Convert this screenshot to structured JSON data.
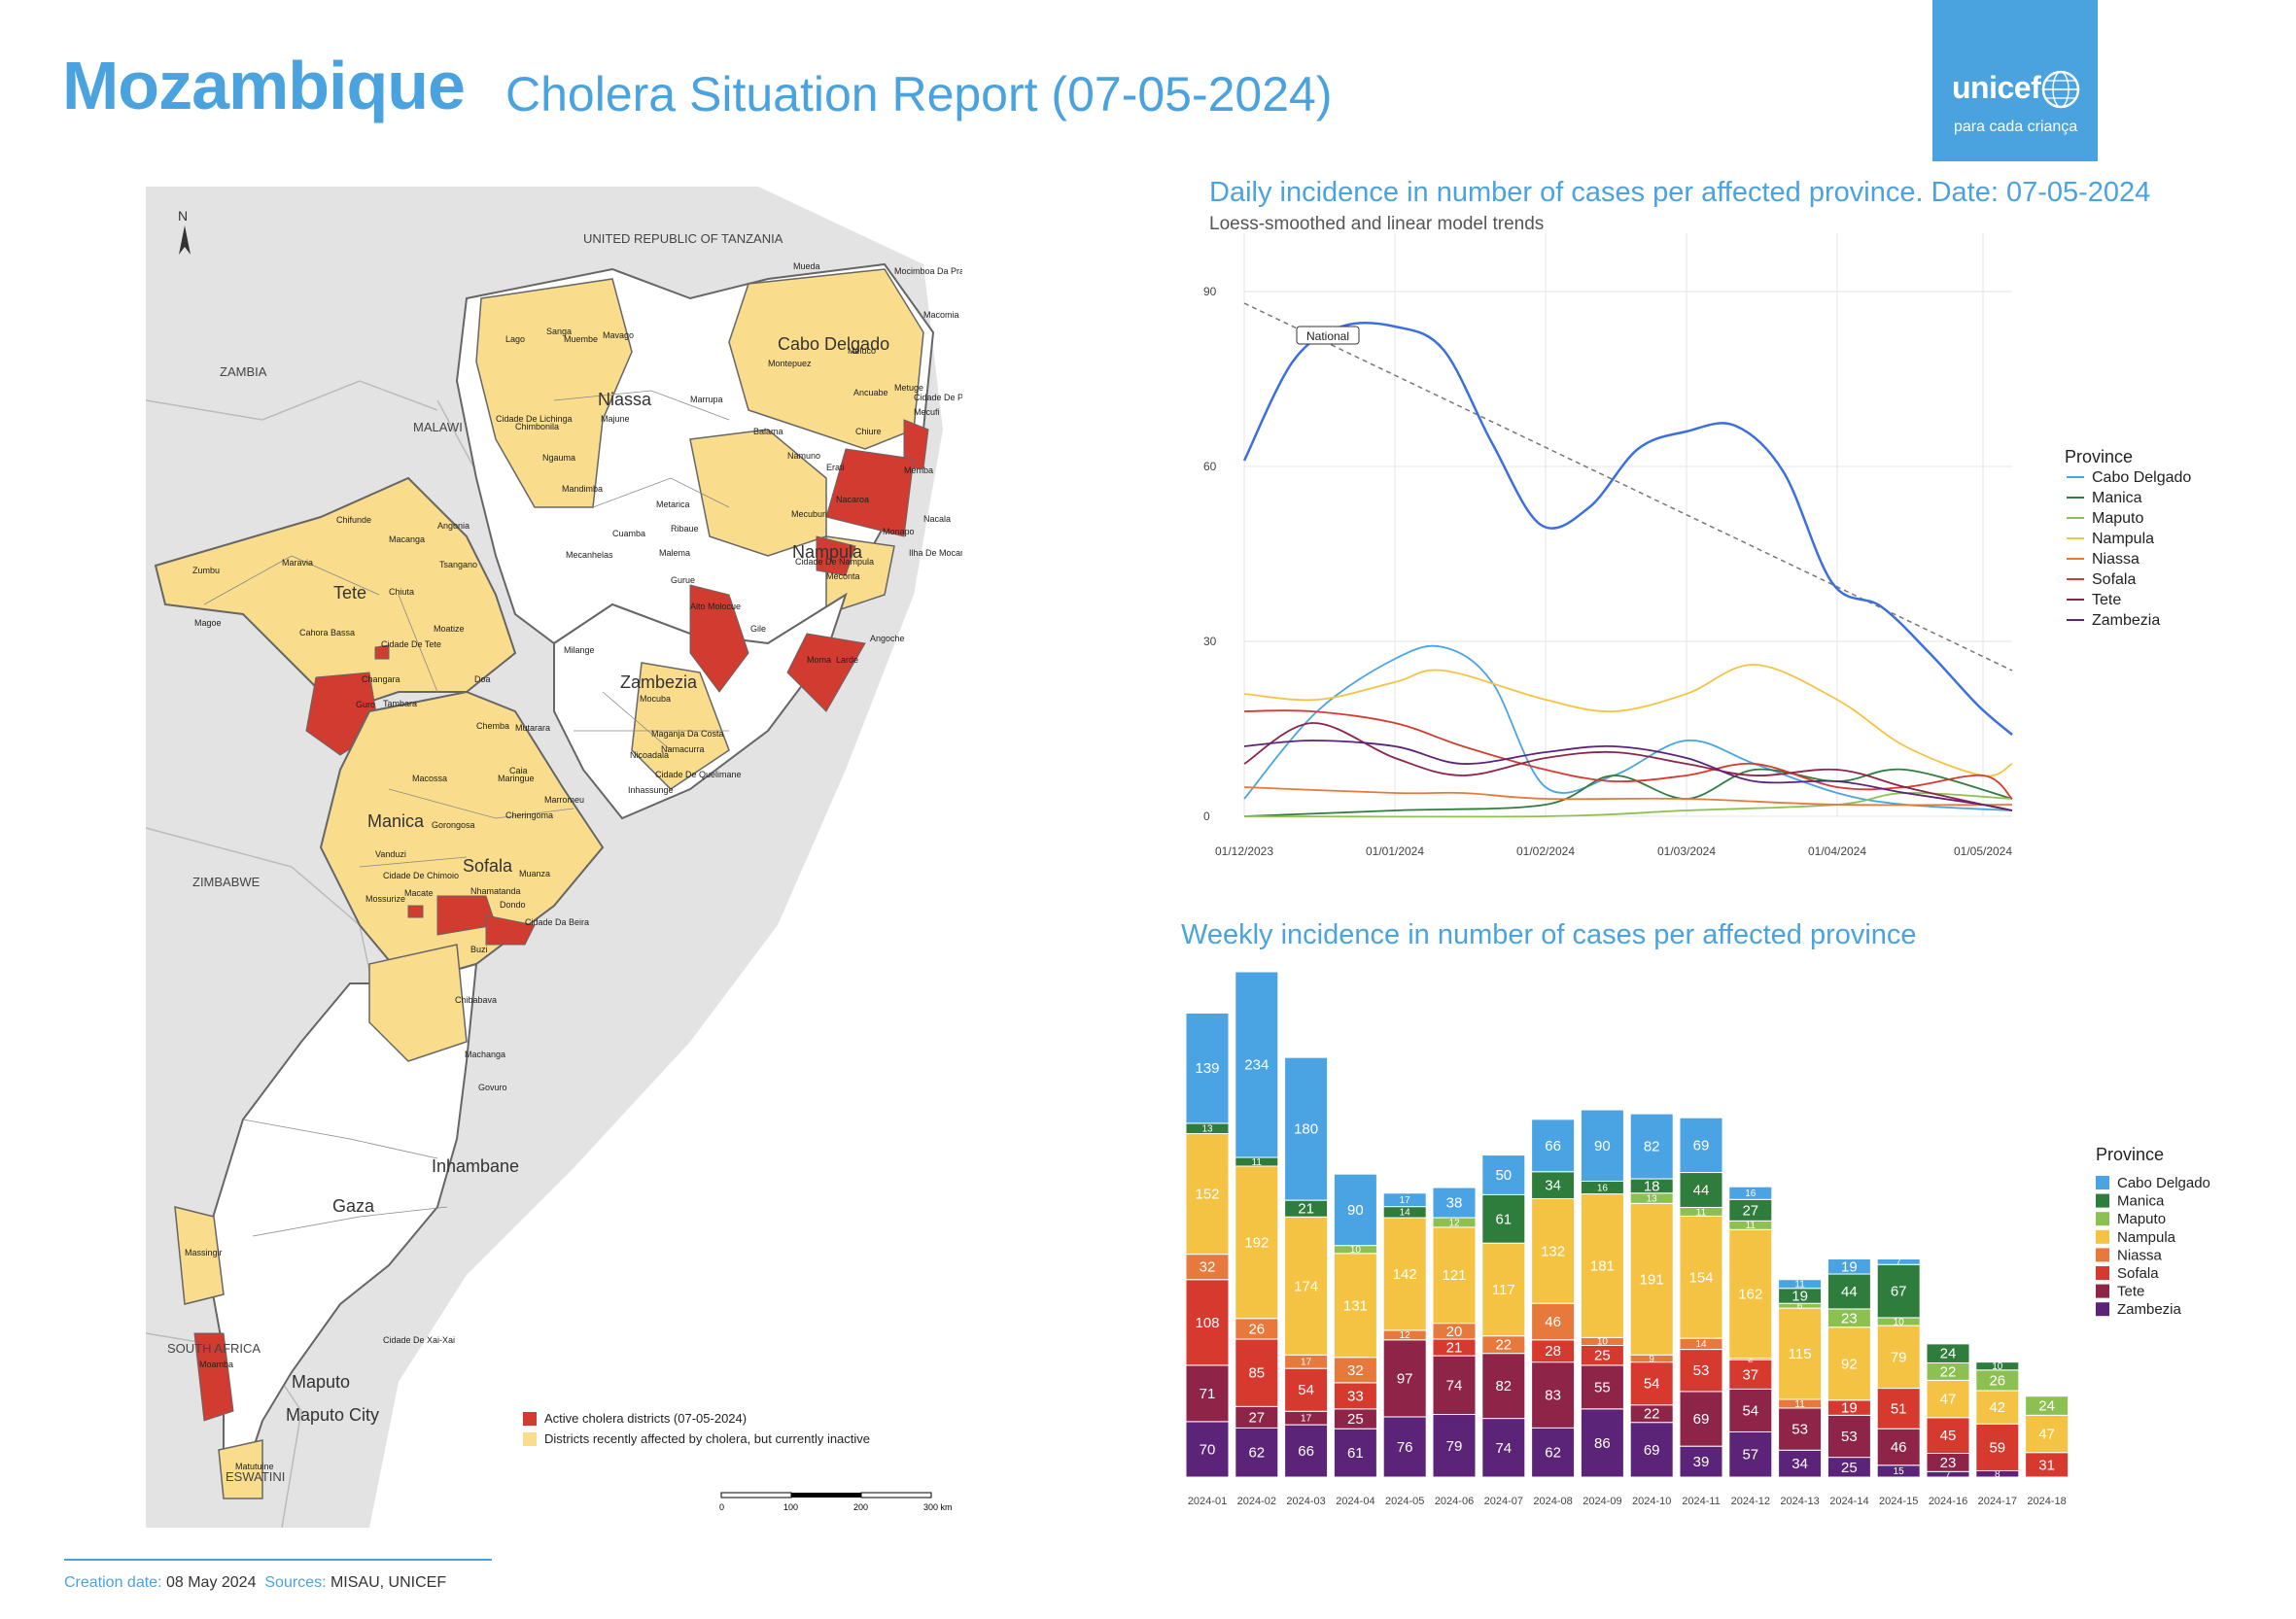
{
  "header": {
    "title": "Mozambique",
    "subtitle": "Cholera Situation Report (07-05-2024)",
    "logo_word": "unicef",
    "logo_tagline": "para cada criança"
  },
  "colors": {
    "unicef_blue": "#4aa3df",
    "active": "#d23b2f",
    "inactive": "#f9dc8c",
    "cabo_delgado": "#4aa3e3",
    "manica": "#2f7d3d",
    "maputo": "#8cc152",
    "nampula": "#f4c343",
    "niassa": "#e8793d",
    "sofala": "#d63a2f",
    "tete": "#8e2448",
    "zambezia": "#5c2478",
    "national": "#3b6fe0"
  },
  "map": {
    "north_label": "N",
    "country_labels": [
      "UNITED REPUBLIC OF TANZANIA",
      "ZAMBIA",
      "MALAWI",
      "ZIMBABWE",
      "SOUTH AFRICA",
      "ESWATINI"
    ],
    "province_labels": [
      "Cabo Delgado",
      "Niassa",
      "Nampula",
      "Tete",
      "Zambezia",
      "Manica",
      "Sofala",
      "Inhambane",
      "Gaza",
      "Maputo",
      "Maputo City"
    ],
    "district_labels": [
      "Mueda",
      "Mocimboa Da Praia",
      "Macomia",
      "Meluco",
      "Montepuez",
      "Ancuabe",
      "Metuge",
      "Cidade De Pemba",
      "Mecufi",
      "Chiure",
      "Balama",
      "Namuno",
      "Erati",
      "Memba",
      "Nacaroa",
      "Monapo",
      "Ilha De Mocambique",
      "Nacala",
      "Mecuburi",
      "Cidade De Nampula",
      "Meconta",
      "Angoche",
      "Larde",
      "Moma",
      "Gile",
      "Alto Molocue",
      "Gurue",
      "Malema",
      "Ribaue",
      "Cuamba",
      "Metarica",
      "Marrupa",
      "Mavago",
      "Sanga",
      "Lago",
      "Muembe",
      "Majune",
      "Cidade De Lichinga",
      "Chimbonila",
      "Ngauma",
      "Mandimba",
      "Mecanhelas",
      "Milange",
      "Mocuba",
      "Maganja Da Costa",
      "Namacurra",
      "Nicoadala",
      "Cidade De Quelimane",
      "Inhassunge",
      "Mutarara",
      "Chemba",
      "Caia",
      "Maringue",
      "Marromeu",
      "Cheringoma",
      "Muanza",
      "Dondo",
      "Cidade Da Beira",
      "Nhamatanda",
      "Buzi",
      "Chibabava",
      "Machanga",
      "Govuro",
      "Gorongosa",
      "Macossa",
      "Tambara",
      "Guro",
      "Changara",
      "Cidade De Tete",
      "Moatize",
      "Chiuta",
      "Tsangano",
      "Angonia",
      "Macanga",
      "Chifunde",
      "Maravia",
      "Zumbu",
      "Magoe",
      "Cahora Bassa",
      "Doa",
      "Mossurize",
      "Vanduzi",
      "Cidade De Chimoio",
      "Macate",
      "Massingir",
      "Moamba",
      "Matutuine",
      "Cidade De Xai-Xai"
    ],
    "legend": [
      {
        "label": "Active cholera districts (07-05-2024)",
        "color": "#d23b2f"
      },
      {
        "label": "Districts recently affected by cholera, but currently inactive",
        "color": "#f9dc8c"
      }
    ],
    "scale_ticks": [
      "0",
      "100",
      "200",
      "300 km"
    ]
  },
  "footer": {
    "creation_label": "Creation date:",
    "creation_value": "08 May 2024",
    "sources_label": "Sources:",
    "sources_value": "MISAU, UNICEF"
  },
  "chart_data": [
    {
      "type": "line",
      "title": "Daily incidence in number of cases per affected province. Date: 07-05-2024",
      "subtitle": "Loess-smoothed and linear model trends",
      "x_ticks": [
        "01/12/2023",
        "01/01/2024",
        "01/02/2024",
        "01/03/2024",
        "01/04/2024",
        "01/05/2024"
      ],
      "ylim": [
        0,
        100
      ],
      "y_ticks": [
        0,
        30,
        60,
        90
      ],
      "legend_title": "Province",
      "legend_position": "right",
      "annotation": "National",
      "series": [
        {
          "name": "National",
          "color": "#3b6fe0",
          "x": [
            "01/12/2023",
            "11/12/2023",
            "21/12/2023",
            "01/01/2024",
            "11/01/2024",
            "21/01/2024",
            "31/01/2024",
            "10/02/2024",
            "20/02/2024",
            "01/03/2024",
            "11/03/2024",
            "21/03/2024",
            "31/03/2024",
            "10/04/2024",
            "20/04/2024",
            "30/04/2024",
            "07/05/2024"
          ],
          "values": [
            61,
            78,
            84,
            84,
            80,
            64,
            50,
            53,
            63,
            66,
            67,
            59,
            40,
            36,
            28,
            19,
            14
          ]
        },
        {
          "name": "Cabo Delgado",
          "color": "#4aa3e3",
          "x": [
            "01/12/2023",
            "16/12/2023",
            "01/01/2024",
            "11/01/2024",
            "21/01/2024",
            "01/02/2024",
            "15/02/2024",
            "01/03/2024",
            "15/03/2024",
            "01/04/2024",
            "15/04/2024",
            "07/05/2024"
          ],
          "values": [
            3,
            18,
            27,
            29,
            23,
            5,
            7,
            13,
            9,
            4,
            2,
            1
          ]
        },
        {
          "name": "Manica",
          "color": "#2f7d3d",
          "x": [
            "01/12/2023",
            "01/01/2024",
            "01/02/2024",
            "15/02/2024",
            "01/03/2024",
            "15/03/2024",
            "01/04/2024",
            "15/04/2024",
            "07/05/2024"
          ],
          "values": [
            0,
            1,
            2,
            7,
            3,
            8,
            6,
            8,
            3
          ]
        },
        {
          "name": "Maputo",
          "color": "#8cc152",
          "x": [
            "01/12/2023",
            "01/02/2024",
            "01/03/2024",
            "01/04/2024",
            "15/04/2024",
            "07/05/2024"
          ],
          "values": [
            0,
            0,
            1,
            2,
            4,
            3
          ]
        },
        {
          "name": "Nampula",
          "color": "#f4c343",
          "x": [
            "01/12/2023",
            "16/12/2023",
            "01/01/2024",
            "11/01/2024",
            "01/02/2024",
            "15/02/2024",
            "01/03/2024",
            "15/03/2024",
            "01/04/2024",
            "15/04/2024",
            "01/05/2024",
            "07/05/2024"
          ],
          "values": [
            21,
            20,
            23,
            25,
            20,
            18,
            21,
            26,
            20,
            12,
            7,
            9
          ]
        },
        {
          "name": "Niassa",
          "color": "#e8793d",
          "x": [
            "01/12/2023",
            "01/01/2024",
            "15/01/2024",
            "01/02/2024",
            "01/03/2024",
            "01/04/2024",
            "07/05/2024"
          ],
          "values": [
            5,
            4,
            4,
            3,
            3,
            2,
            2
          ]
        },
        {
          "name": "Sofala",
          "color": "#d63a2f",
          "x": [
            "01/12/2023",
            "15/12/2023",
            "01/01/2024",
            "15/01/2024",
            "01/02/2024",
            "15/02/2024",
            "01/03/2024",
            "15/03/2024",
            "01/04/2024",
            "15/04/2024",
            "01/05/2024",
            "07/05/2024"
          ],
          "values": [
            18,
            18,
            16,
            12,
            8,
            6,
            7,
            9,
            5,
            5,
            7,
            3
          ]
        },
        {
          "name": "Tete",
          "color": "#8e2448",
          "x": [
            "01/12/2023",
            "15/12/2023",
            "01/01/2024",
            "15/01/2024",
            "01/02/2024",
            "15/02/2024",
            "01/03/2024",
            "15/03/2024",
            "01/04/2024",
            "15/04/2024",
            "01/05/2024",
            "07/05/2024"
          ],
          "values": [
            9,
            16,
            10,
            7,
            10,
            11,
            9,
            7,
            8,
            5,
            2,
            1
          ]
        },
        {
          "name": "Zambezia",
          "color": "#5c2478",
          "x": [
            "01/12/2023",
            "15/12/2023",
            "01/01/2024",
            "15/01/2024",
            "01/02/2024",
            "15/02/2024",
            "01/03/2024",
            "15/03/2024",
            "01/04/2024",
            "15/04/2024",
            "01/05/2024",
            "07/05/2024"
          ],
          "values": [
            12,
            13,
            12,
            9,
            11,
            12,
            10,
            6,
            6,
            4,
            2,
            1
          ]
        }
      ],
      "trends": [
        {
          "name": "National",
          "x": [
            "01/12/2023",
            "07/05/2024"
          ],
          "values": [
            88,
            25
          ]
        }
      ]
    },
    {
      "type": "bar",
      "stacked": true,
      "title": "Weekly incidence in number of cases per affected province",
      "legend_title": "Province",
      "legend_position": "right",
      "categories": [
        "2024-01",
        "2024-02",
        "2024-03",
        "2024-04",
        "2024-05",
        "2024-06",
        "2024-07",
        "2024-08",
        "2024-09",
        "2024-10",
        "2024-11",
        "2024-12",
        "2024-13",
        "2024-14",
        "2024-15",
        "2024-16",
        "2024-17",
        "2024-18"
      ],
      "series": [
        {
          "name": "Zambezia",
          "color": "#5c2478",
          "values": [
            70,
            62,
            66,
            61,
            76,
            79,
            74,
            62,
            86,
            69,
            39,
            57,
            34,
            25,
            15,
            7,
            8,
            0
          ]
        },
        {
          "name": "Tete",
          "color": "#8e2448",
          "values": [
            71,
            27,
            17,
            25,
            97,
            74,
            82,
            83,
            55,
            22,
            69,
            54,
            53,
            53,
            46,
            23,
            0,
            0
          ]
        },
        {
          "name": "Sofala",
          "color": "#d63a2f",
          "values": [
            108,
            85,
            54,
            33,
            0,
            21,
            0,
            28,
            25,
            54,
            53,
            37,
            0,
            19,
            51,
            45,
            59,
            31
          ]
        },
        {
          "name": "Niassa",
          "color": "#e8793d",
          "values": [
            32,
            26,
            17,
            32,
            12,
            20,
            22,
            46,
            10,
            9,
            14,
            2,
            11,
            0,
            0,
            0,
            0,
            0
          ]
        },
        {
          "name": "Nampula",
          "color": "#f4c343",
          "values": [
            152,
            192,
            174,
            131,
            142,
            121,
            117,
            132,
            181,
            191,
            154,
            162,
            115,
            92,
            79,
            47,
            42,
            47
          ]
        },
        {
          "name": "Maputo",
          "color": "#8cc152",
          "values": [
            0,
            0,
            0,
            10,
            0,
            12,
            0,
            0,
            0,
            13,
            11,
            11,
            6,
            23,
            10,
            22,
            26,
            24
          ]
        },
        {
          "name": "Manica",
          "color": "#2f7d3d",
          "values": [
            13,
            11,
            21,
            0,
            14,
            0,
            61,
            34,
            16,
            18,
            44,
            27,
            19,
            44,
            67,
            24,
            10,
            0
          ]
        },
        {
          "name": "Cabo Delgado",
          "color": "#4aa3e3",
          "values": [
            139,
            234,
            180,
            90,
            17,
            38,
            50,
            66,
            90,
            82,
            69,
            16,
            11,
            19,
            7,
            0,
            0,
            0
          ]
        }
      ]
    }
  ]
}
